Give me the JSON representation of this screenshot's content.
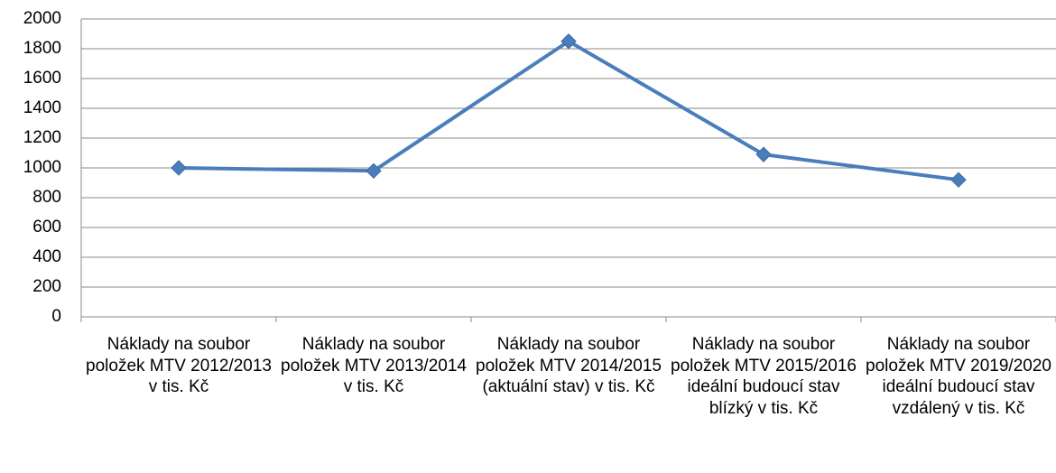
{
  "chart_data": {
    "type": "line",
    "categories": [
      "Náklady na soubor položek MTV 2012/2013 v tis. Kč",
      "Náklady na soubor položek MTV 2013/2014 v tis. Kč",
      "Náklady na soubor položek MTV 2014/2015 (aktuální stav) v tis. Kč",
      "Náklady na soubor položek MTV 2015/2016 ideální budoucí stav blízký v tis. Kč",
      "Náklady na soubor položek MTV 2019/2020 ideální budoucí stav vzdálený v tis. Kč"
    ],
    "values": [
      1000,
      980,
      1850,
      1090,
      920
    ],
    "color": "#4a7ebb",
    "ylim": [
      0,
      2000
    ],
    "yticks": [
      0,
      200,
      400,
      600,
      800,
      1000,
      1200,
      1400,
      1600,
      1800,
      2000
    ],
    "grid": true
  }
}
